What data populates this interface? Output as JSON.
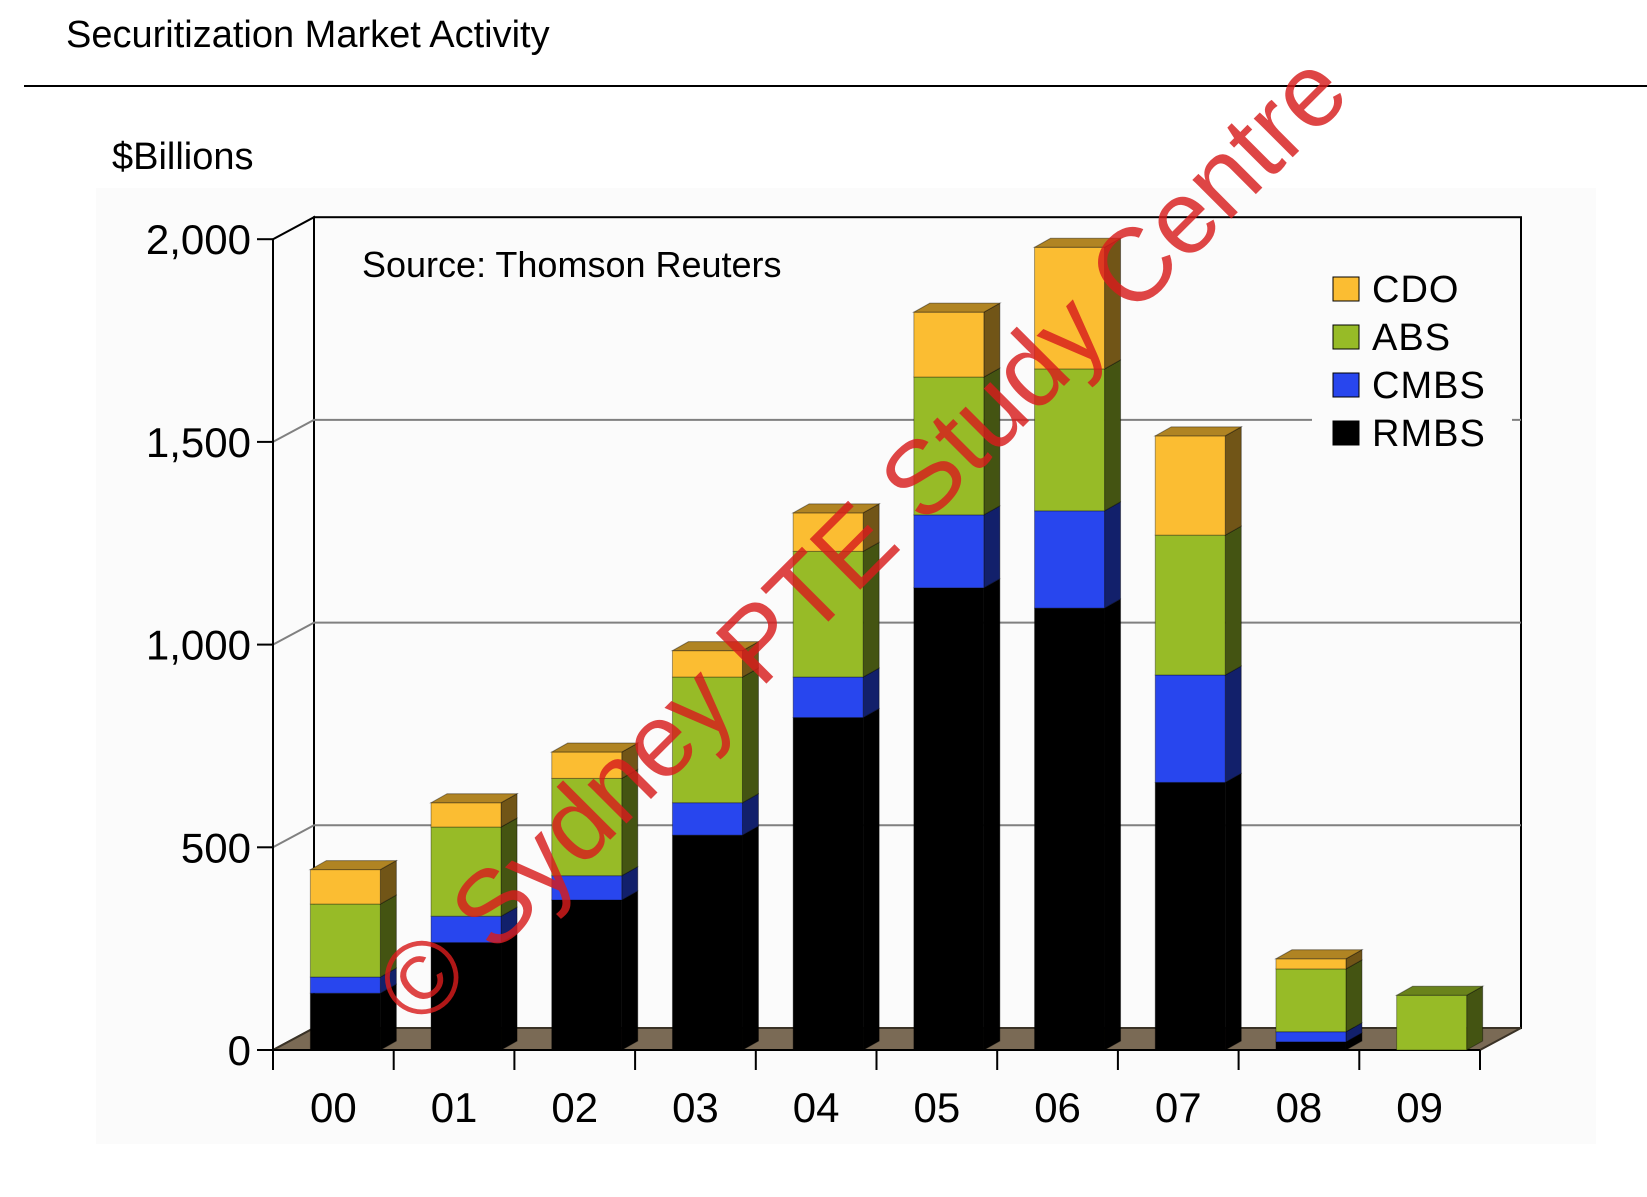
{
  "header": {
    "title": "Securitization Market Activity"
  },
  "watermark": "© Sydney PTE Study Centre",
  "chart_data": {
    "type": "bar",
    "stacked": true,
    "three_d": true,
    "title": "",
    "xlabel": "",
    "ylabel": "$Billions",
    "annotation": "Source: Thomson Reuters",
    "categories": [
      "00",
      "01",
      "02",
      "03",
      "04",
      "05",
      "06",
      "07",
      "08",
      "09"
    ],
    "ylim": [
      0,
      2000
    ],
    "yticks": [
      0,
      500,
      1000,
      1500,
      2000
    ],
    "ytick_labels": [
      "0",
      "500",
      "1,000",
      "1,500",
      "2,000"
    ],
    "grid": true,
    "legend_position": "top-right",
    "series": [
      {
        "name": "RMBS",
        "color": "#000000",
        "values": [
          140,
          265,
          370,
          530,
          820,
          1140,
          1090,
          660,
          20,
          0
        ]
      },
      {
        "name": "CMBS",
        "color": "#2846ee",
        "values": [
          40,
          65,
          60,
          80,
          100,
          180,
          240,
          265,
          25,
          0
        ]
      },
      {
        "name": "ABS",
        "color": "#97bb27",
        "values": [
          180,
          220,
          240,
          310,
          310,
          340,
          350,
          345,
          155,
          135
        ]
      },
      {
        "name": "CDO",
        "color": "#fbbd32",
        "values": [
          85,
          60,
          65,
          65,
          95,
          160,
          300,
          245,
          25,
          0
        ]
      }
    ]
  }
}
